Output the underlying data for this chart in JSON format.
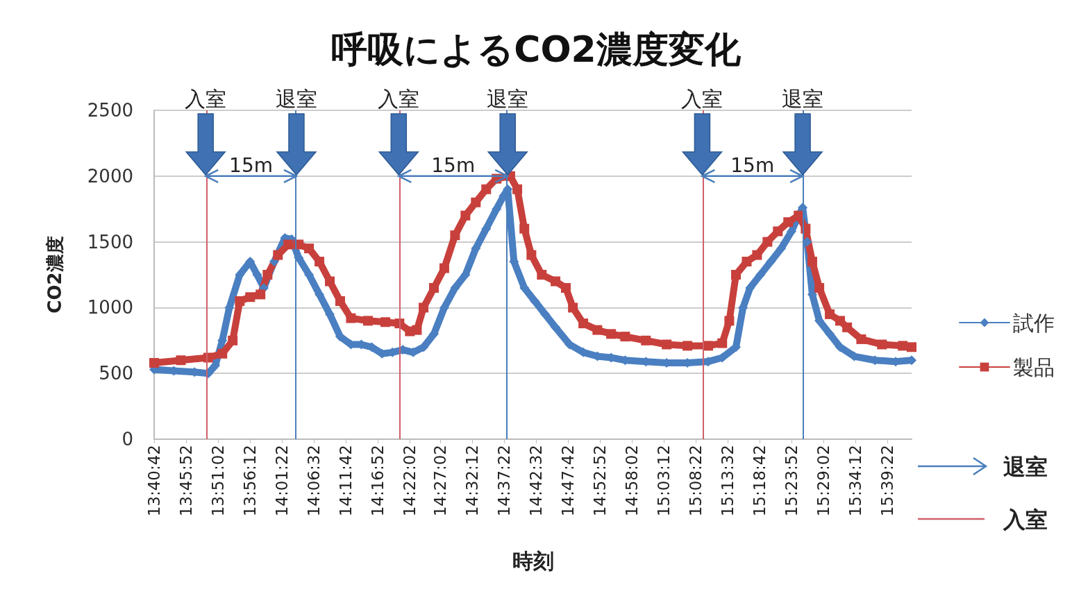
{
  "chart_data": {
    "type": "line",
    "title": "呼吸によるCO2濃度変化",
    "xlabel": "時刻",
    "ylabel": "CO2濃度",
    "xlim": [
      13.678,
      15.722
    ],
    "xticks": [
      {
        "value": 13.6783,
        "label": "13:40:42"
      },
      {
        "value": 13.7644,
        "label": "13:45:52"
      },
      {
        "value": 13.8506,
        "label": "13:51:02"
      },
      {
        "value": 13.9367,
        "label": "13:56:12"
      },
      {
        "value": 14.0228,
        "label": "14:01:22"
      },
      {
        "value": 14.1089,
        "label": "14:06:32"
      },
      {
        "value": 14.195,
        "label": "14:11:42"
      },
      {
        "value": 14.2811,
        "label": "14:16:52"
      },
      {
        "value": 14.3672,
        "label": "14:22:02"
      },
      {
        "value": 14.4506,
        "label": "14:27:02"
      },
      {
        "value": 14.5367,
        "label": "14:32:12"
      },
      {
        "value": 14.6228,
        "label": "14:37:22"
      },
      {
        "value": 14.7089,
        "label": "14:42:32"
      },
      {
        "value": 14.795,
        "label": "14:47:42"
      },
      {
        "value": 14.8811,
        "label": "14:52:52"
      },
      {
        "value": 14.9672,
        "label": "14:58:02"
      },
      {
        "value": 15.0533,
        "label": "15:03:12"
      },
      {
        "value": 15.1394,
        "label": "15:08:22"
      },
      {
        "value": 15.2256,
        "label": "15:13:32"
      },
      {
        "value": 15.3117,
        "label": "15:18:42"
      },
      {
        "value": 15.3978,
        "label": "15:23:52"
      },
      {
        "value": 15.4839,
        "label": "15:29:02"
      },
      {
        "value": 15.57,
        "label": "15:34:12"
      },
      {
        "value": 15.6561,
        "label": "15:39:22"
      }
    ],
    "ylim": [
      0,
      2500
    ],
    "yticks": [
      0,
      500,
      1000,
      1500,
      2000,
      2500
    ],
    "grid": "y",
    "legend": "right",
    "series": [
      {
        "name": "試作",
        "color": "#4a7fc1",
        "marker": "diamond",
        "x": [
          13.678,
          13.731,
          13.787,
          13.824,
          13.843,
          13.862,
          13.881,
          13.909,
          13.937,
          13.956,
          13.974,
          14.002,
          14.031,
          14.049,
          14.068,
          14.096,
          14.124,
          14.152,
          14.18,
          14.209,
          14.237,
          14.265,
          14.293,
          14.321,
          14.349,
          14.377,
          14.405,
          14.433,
          14.461,
          14.49,
          14.518,
          14.546,
          14.574,
          14.602,
          14.621,
          14.632,
          14.649,
          14.677,
          14.705,
          14.733,
          14.761,
          14.799,
          14.836,
          14.874,
          14.911,
          14.949,
          15.005,
          15.061,
          15.117,
          15.173,
          15.211,
          15.248,
          15.267,
          15.286,
          15.314,
          15.342,
          15.37,
          15.398,
          15.417,
          15.428,
          15.44,
          15.454,
          15.473,
          15.501,
          15.529,
          15.567,
          15.623,
          15.679,
          15.722
        ],
        "values": [
          530,
          520,
          510,
          500,
          560,
          750,
          1000,
          1250,
          1350,
          1250,
          1150,
          1350,
          1530,
          1520,
          1380,
          1250,
          1100,
          950,
          780,
          720,
          720,
          700,
          650,
          660,
          680,
          660,
          700,
          800,
          1000,
          1150,
          1250,
          1450,
          1600,
          1750,
          1850,
          1900,
          1350,
          1150,
          1050,
          950,
          850,
          720,
          660,
          630,
          620,
          600,
          590,
          580,
          580,
          590,
          620,
          700,
          1000,
          1150,
          1250,
          1350,
          1450,
          1580,
          1700,
          1760,
          1500,
          1100,
          900,
          800,
          700,
          630,
          600,
          590,
          600
        ]
      },
      {
        "name": "製品",
        "color": "#c8403c",
        "marker": "square",
        "x": [
          13.678,
          13.75,
          13.824,
          13.862,
          13.89,
          13.909,
          13.937,
          13.965,
          13.984,
          14.012,
          14.04,
          14.068,
          14.096,
          14.124,
          14.152,
          14.18,
          14.209,
          14.255,
          14.302,
          14.34,
          14.368,
          14.387,
          14.405,
          14.433,
          14.461,
          14.49,
          14.518,
          14.546,
          14.574,
          14.602,
          14.639,
          14.658,
          14.677,
          14.696,
          14.724,
          14.761,
          14.789,
          14.808,
          14.836,
          14.874,
          14.911,
          14.949,
          15.005,
          15.061,
          15.117,
          15.173,
          15.211,
          15.23,
          15.248,
          15.277,
          15.305,
          15.333,
          15.361,
          15.389,
          15.417,
          15.436,
          15.454,
          15.473,
          15.501,
          15.529,
          15.548,
          15.586,
          15.642,
          15.698,
          15.722
        ],
        "values": [
          580,
          600,
          620,
          650,
          750,
          1050,
          1080,
          1100,
          1250,
          1400,
          1480,
          1480,
          1450,
          1350,
          1200,
          1050,
          920,
          900,
          890,
          880,
          820,
          830,
          1000,
          1150,
          1300,
          1550,
          1700,
          1800,
          1900,
          1980,
          2000,
          1900,
          1600,
          1400,
          1250,
          1200,
          1150,
          1000,
          880,
          830,
          800,
          780,
          750,
          720,
          710,
          710,
          730,
          900,
          1250,
          1350,
          1400,
          1500,
          1580,
          1650,
          1700,
          1600,
          1350,
          1150,
          950,
          900,
          850,
          760,
          720,
          710,
          700
        ]
      }
    ],
    "ref_lines": [
      {
        "axis": "x",
        "value": 14.062,
        "label": "退室",
        "color": "#4a7ebb"
      },
      {
        "axis": "x",
        "value": 14.632,
        "label": "退室",
        "color": "#4a7ebb"
      },
      {
        "axis": "x",
        "value": 15.428,
        "label": "退室",
        "color": "#4a7ebb"
      },
      {
        "axis": "x",
        "value": 13.817,
        "label": "入室",
        "color": "#d0606a"
      },
      {
        "axis": "x",
        "value": 14.338,
        "label": "入室",
        "color": "#d0606a"
      },
      {
        "axis": "x",
        "value": 15.157,
        "label": "入室",
        "color": "#d0606a"
      }
    ],
    "annotations": [
      "15m",
      "15m",
      "15m"
    ]
  }
}
